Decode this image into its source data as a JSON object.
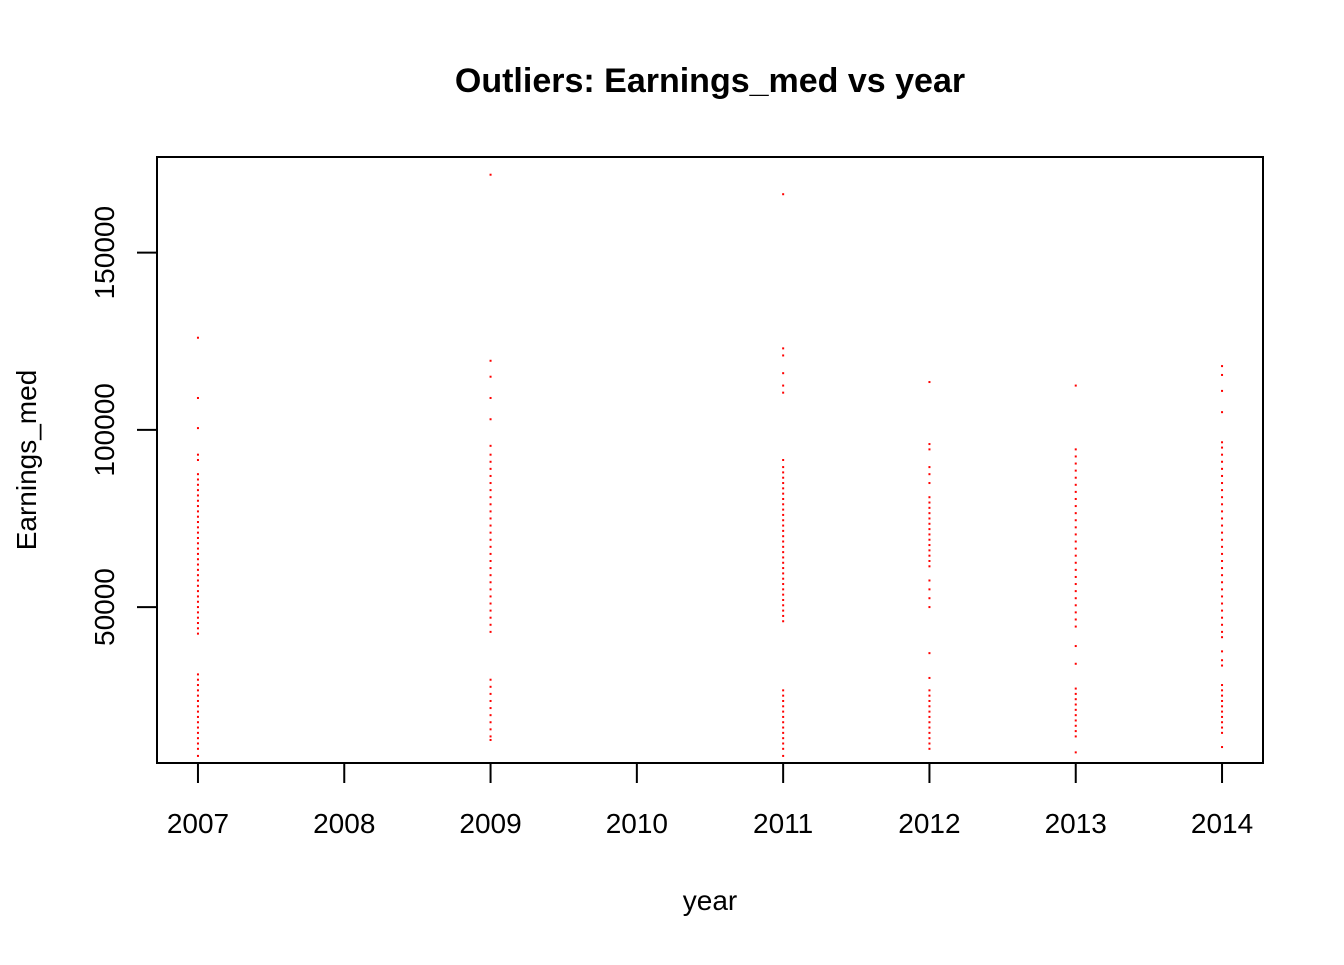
{
  "chart_data": {
    "type": "scatter",
    "title": "Outliers: Earnings_med vs year",
    "xlabel": "year",
    "ylabel": "Earnings_med",
    "xlim": [
      2006.72,
      2014.28
    ],
    "ylim": [
      6000,
      177000
    ],
    "x_ticks": [
      2007,
      2008,
      2009,
      2010,
      2011,
      2012,
      2013,
      2014
    ],
    "x_tick_labels": [
      "2007",
      "2008",
      "2009",
      "2010",
      "2011",
      "2012",
      "2013",
      "2014"
    ],
    "y_ticks": [
      50000,
      100000,
      150000
    ],
    "y_tick_labels": [
      "50000",
      "100000",
      "150000"
    ],
    "grid": false,
    "legend": "none",
    "point_color": "#ff0000",
    "series": [
      {
        "x": 2007,
        "values": [
          126000,
          109000,
          100500,
          93000,
          91500,
          87500,
          86000,
          84500,
          83000,
          81500,
          80000,
          78500,
          77000,
          75500,
          74000,
          72500,
          71000,
          69500,
          68000,
          66500,
          65000,
          63500,
          62000,
          60500,
          59000,
          57500,
          56000,
          54500,
          53000,
          51500,
          50000,
          48500,
          47000,
          45500,
          44000,
          42500,
          31000,
          29500,
          28000,
          26500,
          25000,
          23500,
          22000,
          20500,
          19000,
          17500,
          16000,
          14500,
          13000,
          11500,
          10000,
          8000
        ]
      },
      {
        "x": 2009,
        "values": [
          172000,
          119500,
          115000,
          109000,
          103000,
          95500,
          93000,
          91000,
          89000,
          87000,
          85000,
          83000,
          81000,
          79000,
          77000,
          75000,
          73000,
          71000,
          69000,
          67000,
          65000,
          63000,
          61000,
          59000,
          57000,
          55000,
          53000,
          51000,
          49000,
          47000,
          45000,
          43000,
          29500,
          27500,
          25500,
          23500,
          21500,
          19500,
          17500,
          15500,
          13500,
          12500
        ]
      },
      {
        "x": 2011,
        "values": [
          166500,
          123000,
          121000,
          116000,
          112500,
          110500,
          91500,
          89500,
          88000,
          86500,
          85000,
          83500,
          82000,
          80500,
          79000,
          77500,
          76000,
          74500,
          73000,
          71500,
          70000,
          68500,
          67000,
          65500,
          64000,
          62500,
          61000,
          59500,
          58000,
          56500,
          55000,
          53500,
          52000,
          50500,
          49000,
          47500,
          46000,
          26500,
          25000,
          23500,
          22000,
          20500,
          19000,
          17500,
          16000,
          14500,
          13000,
          11500,
          10000,
          8000
        ]
      },
      {
        "x": 2012,
        "values": [
          113500,
          96000,
          94500,
          89500,
          87500,
          85000,
          81000,
          79500,
          78000,
          76500,
          75000,
          73500,
          72000,
          70500,
          69000,
          67500,
          66000,
          64500,
          63000,
          61500,
          57500,
          55000,
          52500,
          50000,
          37000,
          30000,
          26500,
          25000,
          23500,
          22000,
          20500,
          19000,
          17500,
          16000,
          14500,
          13000,
          11500,
          10000
        ]
      },
      {
        "x": 2013,
        "values": [
          112500,
          94500,
          92500,
          90500,
          88500,
          86500,
          84500,
          82500,
          80500,
          78500,
          76500,
          74500,
          72500,
          70500,
          68500,
          66500,
          64500,
          62500,
          60500,
          58500,
          56500,
          54500,
          52500,
          50500,
          48500,
          46500,
          44500,
          39000,
          34000,
          27000,
          25500,
          24000,
          22500,
          21000,
          19500,
          18000,
          16500,
          15000,
          13500,
          9000
        ]
      },
      {
        "x": 2014,
        "values": [
          118000,
          115500,
          111000,
          105000,
          96500,
          95000,
          93000,
          91000,
          89000,
          87000,
          85000,
          83000,
          81000,
          79000,
          77000,
          75000,
          73000,
          71000,
          69000,
          67000,
          65000,
          63000,
          61000,
          59000,
          57000,
          55000,
          53000,
          51000,
          49000,
          47000,
          45000,
          43000,
          41500,
          37500,
          35000,
          33500,
          28000,
          26500,
          25000,
          23500,
          22000,
          20500,
          19000,
          17500,
          16000,
          14500,
          10500
        ]
      }
    ]
  }
}
